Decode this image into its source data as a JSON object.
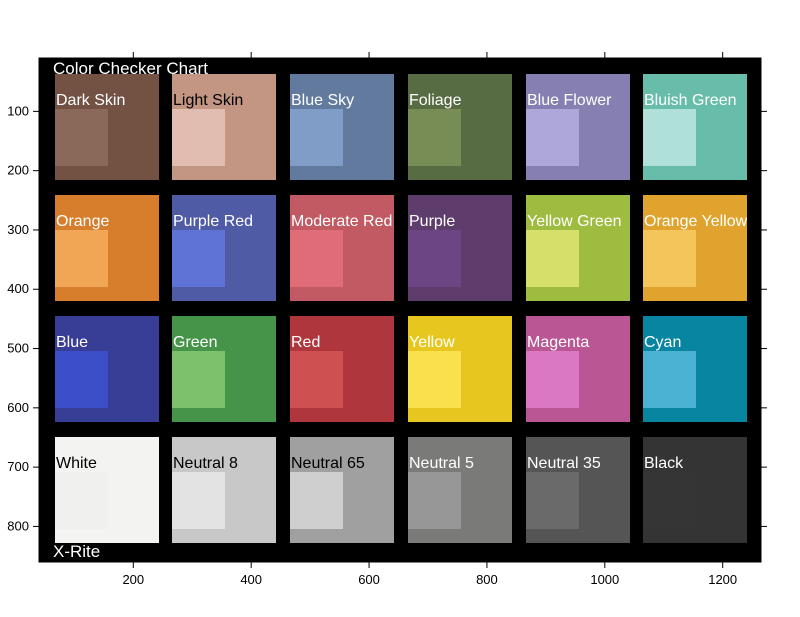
{
  "image": {
    "title_text": "Color Checker Chart",
    "footer_text": "X-Rite",
    "x_axis": {
      "range": [
        40,
        1265
      ],
      "ticks": [
        200,
        400,
        600,
        800,
        1000,
        1200
      ]
    },
    "y_axis": {
      "range": [
        10,
        860
      ],
      "ticks": [
        100,
        200,
        300,
        400,
        500,
        600,
        700,
        800
      ]
    },
    "chart_background": "#000000",
    "patches": [
      {
        "name": "Dark Skin",
        "color": "#735244",
        "inner": "#8a685a",
        "label_color": "#ffffff"
      },
      {
        "name": "Light Skin",
        "color": "#c29682",
        "inner": "#e0bdb0",
        "label_color": "#000000"
      },
      {
        "name": "Blue Sky",
        "color": "#627a9d",
        "inner": "#7f9dc6",
        "label_color": "#ffffff"
      },
      {
        "name": "Foliage",
        "color": "#576c43",
        "inner": "#788c55",
        "label_color": "#ffffff"
      },
      {
        "name": "Blue Flower",
        "color": "#8580b1",
        "inner": "#ada8d9",
        "label_color": "#ffffff"
      },
      {
        "name": "Bluish Green",
        "color": "#67bdaa",
        "inner": "#b0e1d8",
        "label_color": "#ffffff"
      },
      {
        "name": "Orange",
        "color": "#d67e2c",
        "inner": "#f1a656",
        "label_color": "#ffffff"
      },
      {
        "name": "Purple Red",
        "color": "#505ba6",
        "inner": "#5f73d6",
        "label_color": "#ffffff"
      },
      {
        "name": "Moderate Red",
        "color": "#c15a63",
        "inner": "#e06c78",
        "label_color": "#ffffff"
      },
      {
        "name": "Purple",
        "color": "#5e3c6c",
        "inner": "#6b4584",
        "label_color": "#ffffff"
      },
      {
        "name": "Yellow Green",
        "color": "#9dbc40",
        "inner": "#d5e06a",
        "label_color": "#ffffff"
      },
      {
        "name": "Orange Yellow",
        "color": "#e0a32e",
        "inner": "#f4c55a",
        "label_color": "#ffffff"
      },
      {
        "name": "Blue",
        "color": "#383d96",
        "inner": "#3c4fc8",
        "label_color": "#ffffff"
      },
      {
        "name": "Green",
        "color": "#469449",
        "inner": "#7dc26a",
        "label_color": "#ffffff"
      },
      {
        "name": "Red",
        "color": "#af363c",
        "inner": "#cf5050",
        "label_color": "#ffffff"
      },
      {
        "name": "Yellow",
        "color": "#e7c71f",
        "inner": "#fbe04e",
        "label_color": "#ffffff"
      },
      {
        "name": "Magenta",
        "color": "#bb5695",
        "inner": "#da78c4",
        "label_color": "#ffffff"
      },
      {
        "name": "Cyan",
        "color": "#0885a1",
        "inner": "#4cb2d4",
        "label_color": "#ffffff"
      },
      {
        "name": "White",
        "color": "#f3f3f2",
        "inner": "#f0f0ee",
        "label_color": "#000000"
      },
      {
        "name": "Neutral 8",
        "color": "#c8c8c8",
        "inner": "#e3e3e3",
        "label_color": "#000000"
      },
      {
        "name": "Neutral 65",
        "color": "#a0a0a0",
        "inner": "#cfcfcf",
        "label_color": "#000000"
      },
      {
        "name": "Neutral 5",
        "color": "#7a7a79",
        "inner": "#979797",
        "label_color": "#ffffff"
      },
      {
        "name": "Neutral 35",
        "color": "#555555",
        "inner": "#6a6a6a",
        "label_color": "#ffffff"
      },
      {
        "name": "Black",
        "color": "#343434",
        "inner": "#353535",
        "label_color": "#ffffff"
      }
    ]
  }
}
